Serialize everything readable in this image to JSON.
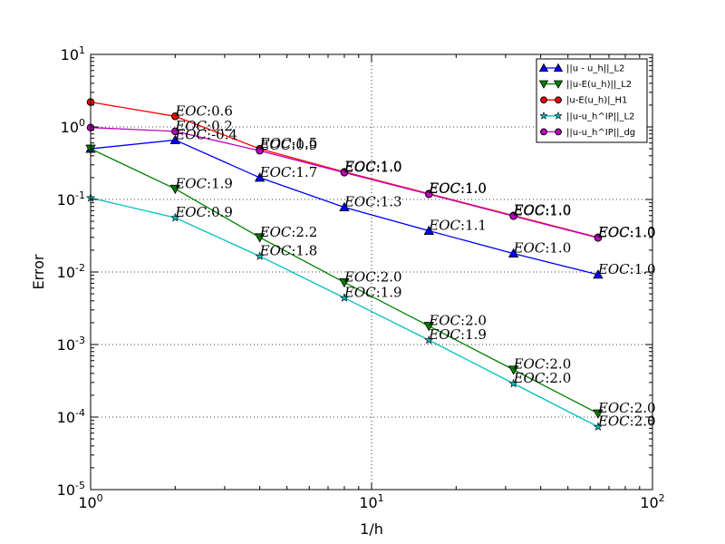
{
  "chart_data": {
    "type": "line",
    "xscale": "log",
    "yscale": "log",
    "xlim": [
      1,
      100
    ],
    "ylim": [
      1e-05,
      10
    ],
    "xlabel": "1/h",
    "ylabel": "Error",
    "grid": true,
    "legend_position": "top-right",
    "x_ticks": [
      {
        "value": 1,
        "base": "10",
        "exp": "0"
      },
      {
        "value": 10,
        "base": "10",
        "exp": "1"
      },
      {
        "value": 100,
        "base": "10",
        "exp": "2"
      }
    ],
    "y_ticks": [
      {
        "value": 1e-05,
        "base": "10",
        "exp": "-5"
      },
      {
        "value": 0.0001,
        "base": "10",
        "exp": "-4"
      },
      {
        "value": 0.001,
        "base": "10",
        "exp": "-3"
      },
      {
        "value": 0.01,
        "base": "10",
        "exp": "-2"
      },
      {
        "value": 0.1,
        "base": "10",
        "exp": "-1"
      },
      {
        "value": 1,
        "base": "10",
        "exp": "0"
      },
      {
        "value": 10,
        "base": "10",
        "exp": "1"
      }
    ],
    "x": [
      1,
      2,
      4,
      8,
      16,
      32,
      64
    ],
    "series": [
      {
        "name": "||u - u_h||_L2",
        "color": "#0000ff",
        "marker": "triangle-up",
        "values": [
          0.5,
          0.66,
          0.2,
          0.078,
          0.037,
          0.018,
          0.0092
        ],
        "eoc": [
          "-0.4",
          "1.7",
          "1.3",
          "1.1",
          "1.0",
          "1.0"
        ]
      },
      {
        "name": "||u-E(u_h)||_L2",
        "color": "#008000",
        "marker": "triangle-down",
        "values": [
          0.5,
          0.14,
          0.03,
          0.0072,
          0.0018,
          0.00045,
          0.000112
        ],
        "eoc": [
          "1.9",
          "2.2",
          "2.0",
          "2.0",
          "2.0",
          "2.0"
        ]
      },
      {
        "name": "|u-E(u_h)|_H1",
        "color": "#ff0000",
        "marker": "circle",
        "values": [
          2.2,
          1.4,
          0.5,
          0.24,
          0.12,
          0.06,
          0.03
        ],
        "eoc": [
          "0.6",
          "1.5",
          "1.0",
          "1.0",
          "1.0",
          "1.0"
        ]
      },
      {
        "name": "||u-u_h^IP||_L2",
        "color": "#00bfbf",
        "marker": "star",
        "values": [
          0.105,
          0.056,
          0.0165,
          0.0044,
          0.00115,
          0.00029,
          7.35e-05
        ],
        "eoc": [
          "0.9",
          "1.8",
          "1.9",
          "1.9",
          "2.0",
          "2.0"
        ]
      },
      {
        "name": "||u-u_h^IP||_dg",
        "color": "#bf00bf",
        "marker": "circle",
        "values": [
          0.98,
          0.87,
          0.47,
          0.235,
          0.118,
          0.059,
          0.0295
        ],
        "eoc": [
          "0.2",
          "0.9",
          "1.0",
          "1.0",
          "1.0",
          "1.0"
        ]
      }
    ],
    "eoc_prefix": "EOC",
    "eoc_separator": ":"
  }
}
